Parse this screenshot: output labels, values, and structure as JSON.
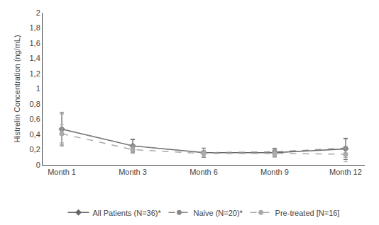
{
  "chart_data": {
    "type": "line",
    "ylabel": "Histrelin Concentration (ng/mL)",
    "categories": [
      "Month 1",
      "Month 3",
      "Month 6",
      "Month 9",
      "Month 12"
    ],
    "series": [
      {
        "name": "All Patients (N=36)*",
        "color": "#666666",
        "marker": "diamond",
        "line_style": "solid",
        "values": [
          0.47,
          0.25,
          0.16,
          0.16,
          0.21
        ],
        "error": [
          0.22,
          0.08,
          0.06,
          0.05,
          0.14
        ]
      },
      {
        "name": "Naive (N=20)*",
        "color": "#888888",
        "marker": "circle",
        "line_style": "dashed",
        "values": [
          0.47,
          0.25,
          0.16,
          0.17,
          0.22
        ],
        "error": [
          0.2,
          0.09,
          0.06,
          0.05,
          0.12
        ]
      },
      {
        "name": "Pre-treated [N=16]",
        "color": "#aaaaaa",
        "marker": "circle",
        "line_style": "dashed",
        "values": [
          0.41,
          0.2,
          0.15,
          0.15,
          0.14
        ],
        "error": [
          0.12,
          0.05,
          0.04,
          0.05,
          0.1
        ]
      }
    ],
    "ylim": [
      0,
      2.0
    ],
    "yticks": [
      0,
      {
        "value": 0.2,
        "label": "0,2"
      },
      {
        "value": 0.4,
        "label": "0,4"
      },
      {
        "value": 0.6,
        "label": "0,6"
      },
      {
        "value": 0.8,
        "label": "0,8"
      },
      1,
      {
        "value": 1.2,
        "label": "1,2"
      },
      {
        "value": 1.4,
        "label": "1,4"
      },
      {
        "value": 1.6,
        "label": "1,6"
      },
      {
        "value": 1.8,
        "label": "1,8"
      },
      2
    ],
    "grid": false,
    "legend": "bottom"
  }
}
